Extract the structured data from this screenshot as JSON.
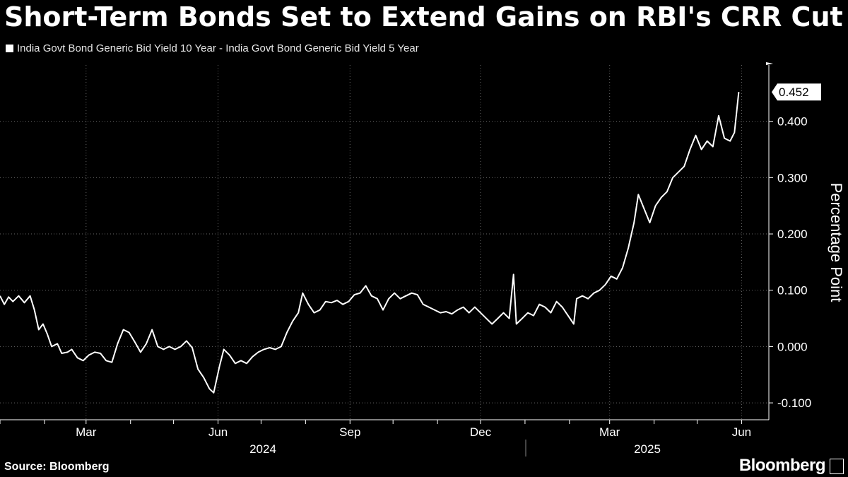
{
  "title": "Short-Term Bonds Set to Extend Gains on RBI's CRR Cut",
  "source": "Source: Bloomberg",
  "brand": "Bloomberg",
  "chart_data": {
    "type": "line",
    "series": [
      {
        "name": "India Govt Bond Generic Bid Yield 10 Year - India Govt Bond Generic Bid Yield 5 Year",
        "color": "#ffffff",
        "points": [
          [
            "2024-01-01",
            0.09
          ],
          [
            "2024-01-04",
            0.075
          ],
          [
            "2024-01-07",
            0.088
          ],
          [
            "2024-01-10",
            0.08
          ],
          [
            "2024-01-14",
            0.09
          ],
          [
            "2024-01-18",
            0.078
          ],
          [
            "2024-01-22",
            0.09
          ],
          [
            "2024-01-25",
            0.065
          ],
          [
            "2024-01-28",
            0.03
          ],
          [
            "2024-01-31",
            0.04
          ],
          [
            "2024-02-03",
            0.022
          ],
          [
            "2024-02-06",
            0.0
          ],
          [
            "2024-02-10",
            0.005
          ],
          [
            "2024-02-13",
            -0.012
          ],
          [
            "2024-02-17",
            -0.01
          ],
          [
            "2024-02-20",
            -0.005
          ],
          [
            "2024-02-24",
            -0.02
          ],
          [
            "2024-02-28",
            -0.025
          ],
          [
            "2024-03-03",
            -0.015
          ],
          [
            "2024-03-07",
            -0.01
          ],
          [
            "2024-03-11",
            -0.012
          ],
          [
            "2024-03-15",
            -0.025
          ],
          [
            "2024-03-19",
            -0.028
          ],
          [
            "2024-03-23",
            0.005
          ],
          [
            "2024-03-27",
            0.03
          ],
          [
            "2024-03-31",
            0.025
          ],
          [
            "2024-04-04",
            0.008
          ],
          [
            "2024-04-08",
            -0.01
          ],
          [
            "2024-04-12",
            0.005
          ],
          [
            "2024-04-16",
            0.03
          ],
          [
            "2024-04-20",
            0.0
          ],
          [
            "2024-04-24",
            -0.005
          ],
          [
            "2024-04-28",
            0.0
          ],
          [
            "2024-05-02",
            -0.005
          ],
          [
            "2024-05-06",
            0.0
          ],
          [
            "2024-05-10",
            0.01
          ],
          [
            "2024-05-14",
            -0.002
          ],
          [
            "2024-05-18",
            -0.04
          ],
          [
            "2024-05-22",
            -0.055
          ],
          [
            "2024-05-26",
            -0.075
          ],
          [
            "2024-05-29",
            -0.082
          ],
          [
            "2024-06-02",
            -0.035
          ],
          [
            "2024-06-05",
            -0.005
          ],
          [
            "2024-06-09",
            -0.015
          ],
          [
            "2024-06-13",
            -0.03
          ],
          [
            "2024-06-17",
            -0.025
          ],
          [
            "2024-06-21",
            -0.03
          ],
          [
            "2024-06-25",
            -0.018
          ],
          [
            "2024-06-29",
            -0.01
          ],
          [
            "2024-07-03",
            -0.005
          ],
          [
            "2024-07-07",
            -0.002
          ],
          [
            "2024-07-11",
            -0.005
          ],
          [
            "2024-07-15",
            0.0
          ],
          [
            "2024-07-19",
            0.025
          ],
          [
            "2024-07-23",
            0.045
          ],
          [
            "2024-07-27",
            0.06
          ],
          [
            "2024-07-30",
            0.095
          ],
          [
            "2024-08-03",
            0.075
          ],
          [
            "2024-08-07",
            0.06
          ],
          [
            "2024-08-11",
            0.065
          ],
          [
            "2024-08-15",
            0.08
          ],
          [
            "2024-08-19",
            0.078
          ],
          [
            "2024-08-23",
            0.082
          ],
          [
            "2024-08-27",
            0.075
          ],
          [
            "2024-08-31",
            0.08
          ],
          [
            "2024-09-04",
            0.092
          ],
          [
            "2024-09-08",
            0.095
          ],
          [
            "2024-09-12",
            0.108
          ],
          [
            "2024-09-16",
            0.09
          ],
          [
            "2024-09-20",
            0.085
          ],
          [
            "2024-09-24",
            0.065
          ],
          [
            "2024-09-28",
            0.085
          ],
          [
            "2024-10-02",
            0.095
          ],
          [
            "2024-10-06",
            0.085
          ],
          [
            "2024-10-10",
            0.09
          ],
          [
            "2024-10-14",
            0.095
          ],
          [
            "2024-10-18",
            0.092
          ],
          [
            "2024-10-22",
            0.075
          ],
          [
            "2024-10-26",
            0.07
          ],
          [
            "2024-10-30",
            0.065
          ],
          [
            "2024-11-03",
            0.06
          ],
          [
            "2024-11-07",
            0.062
          ],
          [
            "2024-11-11",
            0.058
          ],
          [
            "2024-11-15",
            0.065
          ],
          [
            "2024-11-19",
            0.07
          ],
          [
            "2024-11-23",
            0.06
          ],
          [
            "2024-11-27",
            0.07
          ],
          [
            "2024-12-01",
            0.06
          ],
          [
            "2024-12-05",
            0.05
          ],
          [
            "2024-12-09",
            0.04
          ],
          [
            "2024-12-13",
            0.05
          ],
          [
            "2024-12-17",
            0.06
          ],
          [
            "2024-12-21",
            0.05
          ],
          [
            "2024-12-24",
            0.128
          ],
          [
            "2024-12-26",
            0.04
          ],
          [
            "2024-12-30",
            0.05
          ],
          [
            "2025-01-03",
            0.06
          ],
          [
            "2025-01-07",
            0.055
          ],
          [
            "2025-01-11",
            0.075
          ],
          [
            "2025-01-15",
            0.07
          ],
          [
            "2025-01-19",
            0.06
          ],
          [
            "2025-01-23",
            0.08
          ],
          [
            "2025-01-27",
            0.07
          ],
          [
            "2025-01-31",
            0.055
          ],
          [
            "2025-02-04",
            0.04
          ],
          [
            "2025-02-06",
            0.085
          ],
          [
            "2025-02-10",
            0.09
          ],
          [
            "2025-02-14",
            0.085
          ],
          [
            "2025-02-18",
            0.095
          ],
          [
            "2025-02-22",
            0.1
          ],
          [
            "2025-02-26",
            0.11
          ],
          [
            "2025-03-02",
            0.125
          ],
          [
            "2025-03-06",
            0.12
          ],
          [
            "2025-03-10",
            0.14
          ],
          [
            "2025-03-14",
            0.175
          ],
          [
            "2025-03-18",
            0.22
          ],
          [
            "2025-03-21",
            0.27
          ],
          [
            "2025-03-25",
            0.245
          ],
          [
            "2025-03-29",
            0.22
          ],
          [
            "2025-04-02",
            0.25
          ],
          [
            "2025-04-06",
            0.265
          ],
          [
            "2025-04-10",
            0.275
          ],
          [
            "2025-04-14",
            0.3
          ],
          [
            "2025-04-18",
            0.31
          ],
          [
            "2025-04-22",
            0.32
          ],
          [
            "2025-04-26",
            0.35
          ],
          [
            "2025-04-30",
            0.375
          ],
          [
            "2025-05-04",
            0.35
          ],
          [
            "2025-05-08",
            0.365
          ],
          [
            "2025-05-12",
            0.355
          ],
          [
            "2025-05-16",
            0.41
          ],
          [
            "2025-05-20",
            0.37
          ],
          [
            "2025-05-24",
            0.365
          ],
          [
            "2025-05-27",
            0.38
          ],
          [
            "2025-05-30",
            0.452
          ]
        ]
      }
    ],
    "x_range": [
      "2024-01-01",
      "2025-06-20"
    ],
    "x_ticks": [
      {
        "date": "2024-03-01",
        "label": "Mar"
      },
      {
        "date": "2024-06-01",
        "label": "Jun"
      },
      {
        "date": "2024-09-01",
        "label": "Sep"
      },
      {
        "date": "2024-12-01",
        "label": "Dec"
      },
      {
        "date": "2025-03-01",
        "label": "Mar"
      },
      {
        "date": "2025-06-01",
        "label": "Jun"
      }
    ],
    "x_year_labels": [
      {
        "year": "2024"
      },
      {
        "year": "2025"
      }
    ],
    "ylabel": "Percentage Point",
    "y_axis_side": "right",
    "ylim": [
      -0.13,
      0.5
    ],
    "y_ticks": [
      -0.1,
      0.0,
      0.1,
      0.2,
      0.3,
      0.4
    ],
    "y_tick_labels": [
      "-0.100",
      "0.000",
      "0.100",
      "0.200",
      "0.300",
      "0.400"
    ],
    "last_value_label": "0.452",
    "grid": true,
    "background": "#000000",
    "line_color": "#ffffff",
    "grid_color": "#666666"
  }
}
